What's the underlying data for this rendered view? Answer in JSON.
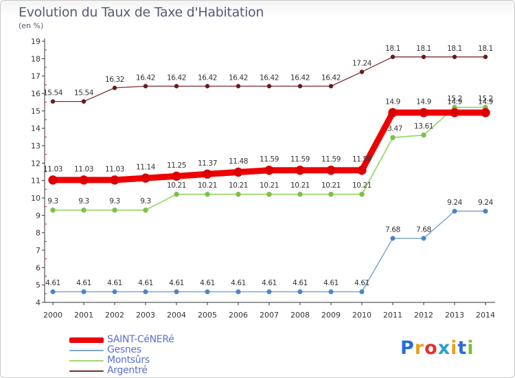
{
  "title": "Evolution du Taux de Taxe d'Habitation",
  "subtitle": "(en %)",
  "logo": {
    "letters": [
      "P",
      "r",
      "o",
      "x",
      "i",
      "t",
      "i"
    ],
    "colors": [
      "#2a6bd6",
      "#e8a21c",
      "#e0332e",
      "#2a9cd8",
      "#e8a21c",
      "#2a6bd6",
      "#7cbf35"
    ]
  },
  "chart_data": {
    "type": "line",
    "x": [
      "2000",
      "2001",
      "2002",
      "2003",
      "2004",
      "2005",
      "2006",
      "2007",
      "2008",
      "2009",
      "2010",
      "2011",
      "2012",
      "2013",
      "2014"
    ],
    "ylim": [
      4,
      19
    ],
    "yticks": [
      "4",
      "5",
      "6",
      "7",
      "8",
      "9",
      "10",
      "11",
      "12",
      "13",
      "14",
      "15",
      "16",
      "17",
      "18",
      "19"
    ],
    "grid": false,
    "series": [
      {
        "name": "Argentré",
        "color": "#7a2e2e",
        "marker": "#6a1a1a",
        "width": 1.3,
        "r": 3,
        "labels": [
          "15.54",
          "15.54",
          "16.32",
          "16.42",
          "16.42",
          "16.42",
          "16.42",
          "16.42",
          "16.42",
          "16.42",
          "17.24",
          "18.1",
          "18.1",
          "18.1",
          "18.1"
        ],
        "values": [
          15.54,
          15.54,
          16.32,
          16.42,
          16.42,
          16.42,
          16.42,
          16.42,
          16.42,
          16.42,
          17.24,
          18.1,
          18.1,
          18.1,
          18.1
        ]
      },
      {
        "name": "Montsûrs",
        "color": "#9ad96a",
        "marker": "#7cc04a",
        "width": 1.8,
        "r": 3.5,
        "labels": [
          "9.3",
          "9.3",
          "9.3",
          "9.3",
          "10.21",
          "10.21",
          "10.21",
          "10.21",
          "10.21",
          "10.21",
          "10.21",
          "13.47",
          "13.61",
          "15.2",
          "15.2"
        ],
        "values": [
          9.3,
          9.3,
          9.3,
          9.3,
          10.21,
          10.21,
          10.21,
          10.21,
          10.21,
          10.21,
          10.21,
          13.47,
          13.61,
          15.2,
          15.2
        ]
      },
      {
        "name": "Gesnes",
        "color": "#7aa6cf",
        "marker": "#4a86c4",
        "width": 1.5,
        "r": 3.3,
        "labels": [
          "4.61",
          "4.61",
          "4.61",
          "4.61",
          "4.61",
          "4.61",
          "4.61",
          "4.61",
          "4.61",
          "4.61",
          "4.61",
          "7.68",
          "7.68",
          "9.24",
          "9.24"
        ],
        "values": [
          4.61,
          4.61,
          4.61,
          4.61,
          4.61,
          4.61,
          4.61,
          4.61,
          4.61,
          4.61,
          4.61,
          7.68,
          7.68,
          9.24,
          9.24
        ]
      },
      {
        "name": "SAINT-CéNERé",
        "color": "#ee0000",
        "marker": "#dd0000",
        "width": 9,
        "r": 6.5,
        "labels": [
          "11.03",
          "11.03",
          "11.03",
          "11.14",
          "11.25",
          "11.37",
          "11.48",
          "11.59",
          "11.59",
          "11.59",
          "11.59",
          "14.9",
          "14.9",
          "14.9",
          "14.9"
        ],
        "values": [
          11.03,
          11.03,
          11.03,
          11.14,
          11.25,
          11.37,
          11.48,
          11.59,
          11.59,
          11.59,
          11.59,
          14.9,
          14.9,
          14.9,
          14.9
        ]
      }
    ],
    "legend": [
      "SAINT-CéNERé",
      "Gesnes",
      "Montsûrs",
      "Argentré"
    ]
  }
}
